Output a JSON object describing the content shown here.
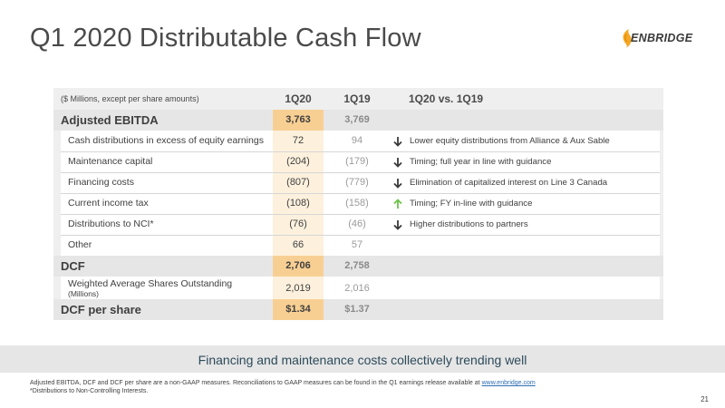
{
  "slide": {
    "title": "Q1 2020 Distributable Cash Flow",
    "logo_text": "ENBRIDGE",
    "banner": "Financing and maintenance costs collectively trending well",
    "footnote_line1": "Adjusted EBITDA, DCF and DCF per share are a non-GAAP measures. Reconciliations to GAAP measures can be found in the Q1 earnings release available at",
    "footnote_link": "www.enbridge.com",
    "footnote_line2": "*Distributions to Non-Controlling Interests.",
    "page_number": "21"
  },
  "table": {
    "header_label": "($ Millions, except per share amounts)",
    "col1": "1Q20",
    "col2": "1Q19",
    "col3": "1Q20 vs. 1Q19",
    "rows": [
      {
        "label": "Adjusted EBITDA",
        "v1": "3,763",
        "v2": "3,769",
        "note": ""
      },
      {
        "label": "Cash distributions in excess of equity earnings",
        "v1": "72",
        "v2": "94",
        "note": "Lower equity distributions from Alliance & Aux Sable",
        "arrow": "down"
      },
      {
        "label": "Maintenance capital",
        "v1": "(204)",
        "v2": "(179)",
        "note": "Timing; full year in line with guidance",
        "arrow": "down"
      },
      {
        "label": "Financing costs",
        "v1": "(807)",
        "v2": "(779)",
        "note": "Elimination of capitalized interest on Line 3 Canada",
        "arrow": "down"
      },
      {
        "label": "Current income tax",
        "v1": "(108)",
        "v2": "(158)",
        "note": "Timing; FY in-line with guidance",
        "arrow": "up"
      },
      {
        "label": "Distributions to NCI*",
        "v1": "(76)",
        "v2": "(46)",
        "note": "Higher distributions to partners",
        "arrow": "down"
      },
      {
        "label": "Other",
        "v1": "66",
        "v2": "57",
        "note": ""
      },
      {
        "label": "DCF",
        "v1": "2,706",
        "v2": "2,758",
        "note": ""
      },
      {
        "label": "Weighted Average Shares Outstanding",
        "sublabel": "(Millions)",
        "v1": "2,019",
        "v2": "2,016",
        "note": ""
      },
      {
        "label": "DCF per share",
        "v1": "$1.34",
        "v2": "$1.37",
        "note": ""
      }
    ]
  },
  "colors": {
    "highlight_cell": "#f8cf93",
    "highlight_col": "#fdf1dd",
    "arrow_down": "#3a3a3a",
    "arrow_up": "#6cc24a",
    "logo_accent": "#f5a623"
  },
  "icons": {
    "down": "arrow-down-icon",
    "up": "arrow-up-icon"
  }
}
